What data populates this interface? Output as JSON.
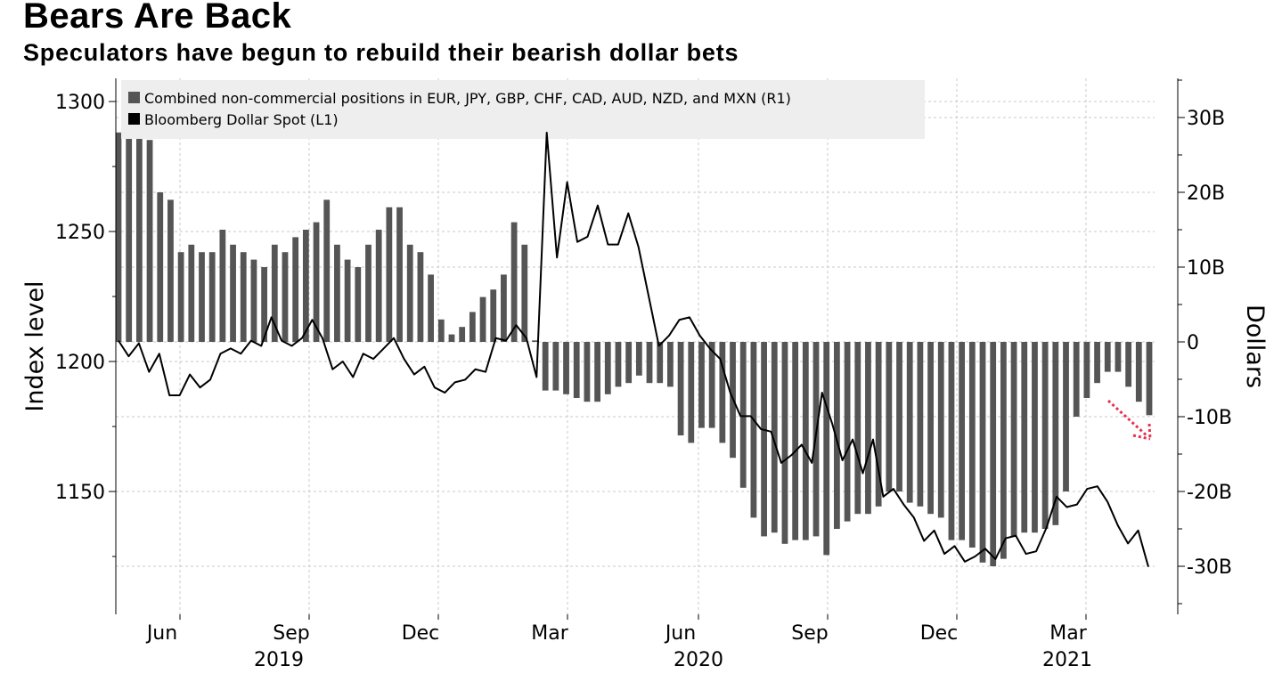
{
  "header": {
    "title": "Bears Are Back",
    "subtitle": "Speculators have begun to rebuild their bearish dollar bets"
  },
  "chart_data": {
    "type": "bar+line",
    "colors": {
      "bars": "#555555",
      "line": "#000000",
      "annotation_arrow": "#e8314f",
      "legend_bg": "#eeeeee"
    },
    "legend": {
      "placement": "top-left",
      "entries": [
        "Combined non-commercial positions in EUR, JPY, GBP, CHF, CAD, AUD, NZD, and MXN (R1)",
        "Bloomberg Dollar Spot (L1)"
      ]
    },
    "left_axis": {
      "label": "Index level",
      "ticks": [
        1150,
        1200,
        1250,
        1300
      ],
      "range": [
        1110,
        1305
      ]
    },
    "right_axis": {
      "label": "Dollars",
      "ticks": [
        "30B",
        "20B",
        "10B",
        "0",
        "-10B",
        "-20B",
        "-30B"
      ],
      "tick_values": [
        30,
        20,
        10,
        0,
        -10,
        -20,
        -30
      ],
      "range": [
        -36,
        35
      ]
    },
    "x_axis": {
      "month_labels": [
        "Jun",
        "Sep",
        "Dec",
        "Mar",
        "Jun",
        "Sep",
        "Dec",
        "Mar"
      ],
      "year_labels": [
        "2019",
        "2020",
        "2021"
      ]
    },
    "series": [
      {
        "name": "Combined non-commercial positions in EUR, JPY, GBP, CHF, CAD, AUD, NZD, and MXN (R1)",
        "type": "bar",
        "values": [
          28,
          29,
          29,
          27,
          20,
          19,
          12,
          13,
          12,
          12,
          15,
          13,
          12,
          11,
          10,
          13,
          12,
          14,
          15,
          16,
          19,
          13,
          11,
          10,
          13,
          15,
          18,
          18,
          13,
          12,
          9,
          3,
          1,
          2,
          4,
          6,
          7,
          9,
          16,
          13,
          0.2,
          -6.5,
          -6.5,
          -7,
          -7.5,
          -8,
          -8,
          -7,
          -6,
          -5.5,
          -4.5,
          -5.5,
          -5.5,
          -6,
          -12.5,
          -13.5,
          -11.5,
          -11.5,
          -13.5,
          -15.5,
          -19.5,
          -23.5,
          -26,
          -25.5,
          -27,
          -26.5,
          -26.5,
          -26,
          -28.5,
          -25,
          -24,
          -23,
          -23,
          -22,
          -20,
          -20,
          -21.5,
          -22,
          -23,
          -23.5,
          -26.5,
          -26.5,
          -27.5,
          -29.5,
          -30,
          -29,
          -26,
          -25.5,
          -25.5,
          -25,
          -24.5,
          -20,
          -10,
          -7.5,
          -5.5,
          -4,
          -4,
          -6,
          -8,
          -9.8
        ]
      },
      {
        "name": "Bloomberg Dollar Spot (L1)",
        "type": "line",
        "values": [
          1208,
          1202,
          1207,
          1196,
          1203,
          1187,
          1187,
          1195,
          1190,
          1193,
          1203,
          1205,
          1203,
          1208,
          1206,
          1217,
          1208,
          1206,
          1209,
          1216,
          1209,
          1197,
          1200,
          1194,
          1203,
          1201,
          1205,
          1209,
          1201,
          1195,
          1198,
          1190,
          1188,
          1192,
          1193,
          1197,
          1196,
          1209,
          1208,
          1214,
          1209,
          1194,
          1288,
          1240,
          1269,
          1246,
          1248,
          1260,
          1245,
          1245,
          1257,
          1244,
          1225,
          1206,
          1210,
          1216,
          1217,
          1210,
          1205,
          1201,
          1188,
          1179,
          1179,
          1174,
          1173,
          1161,
          1164,
          1168,
          1161,
          1188,
          1176,
          1162,
          1170,
          1157,
          1170,
          1148,
          1151,
          1145,
          1140,
          1131,
          1135,
          1126,
          1129,
          1123,
          1125,
          1128,
          1124,
          1132,
          1133,
          1126,
          1127,
          1136,
          1148,
          1144,
          1145,
          1151,
          1152,
          1146,
          1137,
          1130,
          1135,
          1121
        ]
      }
    ]
  }
}
